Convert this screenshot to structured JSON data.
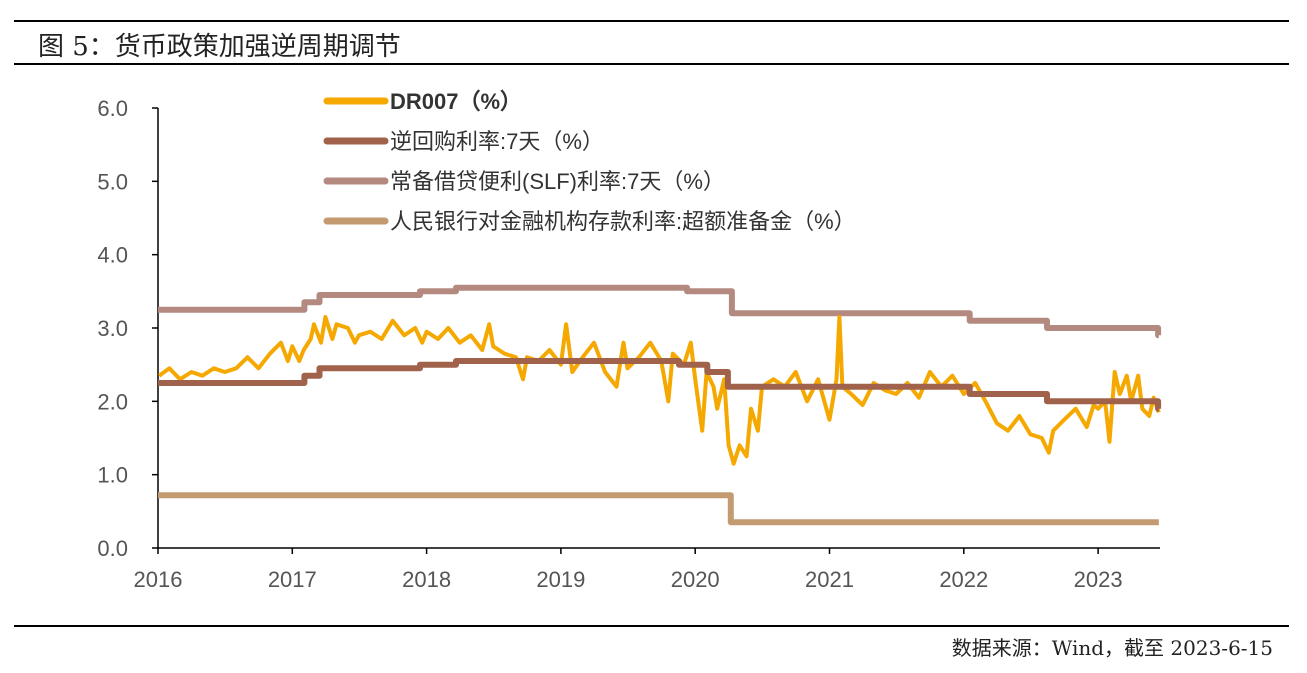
{
  "title": "图 5：货币政策加强逆周期调节",
  "source": "数据来源：Wind，截至 2023-6-15",
  "chart_data": {
    "type": "line",
    "title": "",
    "xlabel": "",
    "ylabel": "",
    "ylim": [
      0,
      6
    ],
    "yticks": [
      "0.0",
      "1.0",
      "2.0",
      "3.0",
      "4.0",
      "5.0",
      "6.0"
    ],
    "xticks": [
      "2016",
      "2017",
      "2018",
      "2019",
      "2020",
      "2021",
      "2022",
      "2023"
    ],
    "xlim": [
      "2016-01-01",
      "2023-06-15"
    ],
    "grid": false,
    "legend_position": "top",
    "series": [
      {
        "name": "DR007（%）",
        "color": "#F5A800",
        "step": false,
        "points": [
          [
            "2016-01-04",
            2.35
          ],
          [
            "2016-02-01",
            2.45
          ],
          [
            "2016-03-01",
            2.3
          ],
          [
            "2016-04-01",
            2.4
          ],
          [
            "2016-05-01",
            2.35
          ],
          [
            "2016-06-01",
            2.45
          ],
          [
            "2016-07-01",
            2.4
          ],
          [
            "2016-08-01",
            2.45
          ],
          [
            "2016-09-01",
            2.6
          ],
          [
            "2016-10-01",
            2.45
          ],
          [
            "2016-11-01",
            2.65
          ],
          [
            "2016-12-01",
            2.8
          ],
          [
            "2016-12-20",
            2.55
          ],
          [
            "2017-01-01",
            2.75
          ],
          [
            "2017-01-20",
            2.55
          ],
          [
            "2017-02-01",
            2.7
          ],
          [
            "2017-02-20",
            2.85
          ],
          [
            "2017-03-01",
            3.05
          ],
          [
            "2017-03-20",
            2.8
          ],
          [
            "2017-04-01",
            3.15
          ],
          [
            "2017-04-20",
            2.85
          ],
          [
            "2017-05-01",
            3.05
          ],
          [
            "2017-06-01",
            3.0
          ],
          [
            "2017-06-20",
            2.8
          ],
          [
            "2017-07-01",
            2.9
          ],
          [
            "2017-08-01",
            2.95
          ],
          [
            "2017-09-01",
            2.85
          ],
          [
            "2017-10-01",
            3.1
          ],
          [
            "2017-11-01",
            2.9
          ],
          [
            "2017-12-01",
            3.0
          ],
          [
            "2017-12-20",
            2.8
          ],
          [
            "2018-01-01",
            2.95
          ],
          [
            "2018-02-01",
            2.85
          ],
          [
            "2018-03-01",
            3.0
          ],
          [
            "2018-04-01",
            2.8
          ],
          [
            "2018-05-01",
            2.9
          ],
          [
            "2018-06-01",
            2.7
          ],
          [
            "2018-06-20",
            3.05
          ],
          [
            "2018-07-01",
            2.75
          ],
          [
            "2018-08-01",
            2.65
          ],
          [
            "2018-09-01",
            2.6
          ],
          [
            "2018-09-20",
            2.3
          ],
          [
            "2018-10-01",
            2.6
          ],
          [
            "2018-11-01",
            2.55
          ],
          [
            "2018-12-01",
            2.7
          ],
          [
            "2019-01-01",
            2.5
          ],
          [
            "2019-01-15",
            3.05
          ],
          [
            "2019-02-01",
            2.4
          ],
          [
            "2019-03-01",
            2.6
          ],
          [
            "2019-04-01",
            2.8
          ],
          [
            "2019-05-01",
            2.4
          ],
          [
            "2019-06-01",
            2.2
          ],
          [
            "2019-06-20",
            2.8
          ],
          [
            "2019-07-01",
            2.45
          ],
          [
            "2019-08-01",
            2.6
          ],
          [
            "2019-09-01",
            2.8
          ],
          [
            "2019-10-01",
            2.55
          ],
          [
            "2019-10-20",
            2.0
          ],
          [
            "2019-11-01",
            2.65
          ],
          [
            "2019-12-01",
            2.5
          ],
          [
            "2019-12-20",
            2.8
          ],
          [
            "2020-01-01",
            2.3
          ],
          [
            "2020-01-20",
            1.6
          ],
          [
            "2020-02-01",
            2.4
          ],
          [
            "2020-02-20",
            2.2
          ],
          [
            "2020-03-01",
            1.9
          ],
          [
            "2020-03-20",
            2.3
          ],
          [
            "2020-04-01",
            1.4
          ],
          [
            "2020-04-15",
            1.15
          ],
          [
            "2020-05-01",
            1.4
          ],
          [
            "2020-05-20",
            1.25
          ],
          [
            "2020-06-01",
            1.9
          ],
          [
            "2020-06-20",
            1.6
          ],
          [
            "2020-07-01",
            2.2
          ],
          [
            "2020-08-01",
            2.3
          ],
          [
            "2020-09-01",
            2.2
          ],
          [
            "2020-10-01",
            2.4
          ],
          [
            "2020-11-01",
            2.0
          ],
          [
            "2020-12-01",
            2.3
          ],
          [
            "2021-01-01",
            1.75
          ],
          [
            "2021-01-20",
            2.3
          ],
          [
            "2021-01-28",
            3.15
          ],
          [
            "2021-02-05",
            2.2
          ],
          [
            "2021-03-01",
            2.1
          ],
          [
            "2021-04-01",
            1.95
          ],
          [
            "2021-05-01",
            2.25
          ],
          [
            "2021-06-01",
            2.15
          ],
          [
            "2021-07-01",
            2.1
          ],
          [
            "2021-08-01",
            2.25
          ],
          [
            "2021-09-01",
            2.05
          ],
          [
            "2021-10-01",
            2.4
          ],
          [
            "2021-11-01",
            2.2
          ],
          [
            "2021-12-01",
            2.35
          ],
          [
            "2022-01-01",
            2.1
          ],
          [
            "2022-02-01",
            2.25
          ],
          [
            "2022-03-01",
            2.0
          ],
          [
            "2022-04-01",
            1.7
          ],
          [
            "2022-05-01",
            1.6
          ],
          [
            "2022-06-01",
            1.8
          ],
          [
            "2022-07-01",
            1.55
          ],
          [
            "2022-08-01",
            1.5
          ],
          [
            "2022-08-20",
            1.3
          ],
          [
            "2022-09-01",
            1.6
          ],
          [
            "2022-10-01",
            1.75
          ],
          [
            "2022-11-01",
            1.9
          ],
          [
            "2022-12-01",
            1.65
          ],
          [
            "2022-12-20",
            1.95
          ],
          [
            "2023-01-01",
            1.9
          ],
          [
            "2023-01-20",
            2.0
          ],
          [
            "2023-02-01",
            1.45
          ],
          [
            "2023-02-15",
            2.4
          ],
          [
            "2023-03-01",
            2.1
          ],
          [
            "2023-03-20",
            2.35
          ],
          [
            "2023-04-01",
            2.0
          ],
          [
            "2023-04-20",
            2.35
          ],
          [
            "2023-05-01",
            1.9
          ],
          [
            "2023-05-20",
            1.8
          ],
          [
            "2023-06-01",
            2.05
          ],
          [
            "2023-06-15",
            1.85
          ]
        ]
      },
      {
        "name": "逆回购利率:7天（%）",
        "color": "#A0624A",
        "step": true,
        "points": [
          [
            "2016-01-01",
            2.25
          ],
          [
            "2017-02-03",
            2.35
          ],
          [
            "2017-03-16",
            2.45
          ],
          [
            "2017-12-14",
            2.5
          ],
          [
            "2018-03-22",
            2.55
          ],
          [
            "2019-11-18",
            2.5
          ],
          [
            "2020-02-03",
            2.4
          ],
          [
            "2020-03-30",
            2.2
          ],
          [
            "2022-01-17",
            2.1
          ],
          [
            "2022-08-15",
            2.0
          ],
          [
            "2023-06-13",
            1.9
          ],
          [
            "2023-06-15",
            1.9
          ]
        ]
      },
      {
        "name": "常备借贷便利(SLF)利率:7天（%）",
        "color": "#B48A80",
        "step": true,
        "points": [
          [
            "2016-01-01",
            3.25
          ],
          [
            "2017-02-03",
            3.35
          ],
          [
            "2017-03-16",
            3.45
          ],
          [
            "2017-12-14",
            3.5
          ],
          [
            "2018-03-22",
            3.55
          ],
          [
            "2019-12-10",
            3.5
          ],
          [
            "2020-04-10",
            3.2
          ],
          [
            "2022-01-17",
            3.1
          ],
          [
            "2022-08-15",
            3.0
          ],
          [
            "2023-06-13",
            2.9
          ],
          [
            "2023-06-15",
            2.9
          ]
        ]
      },
      {
        "name": "人民银行对金融机构存款利率:超额准备金（%）",
        "color": "#C49A70",
        "step": true,
        "points": [
          [
            "2016-01-01",
            0.72
          ],
          [
            "2020-04-07",
            0.35
          ],
          [
            "2023-06-15",
            0.35
          ]
        ]
      }
    ]
  }
}
